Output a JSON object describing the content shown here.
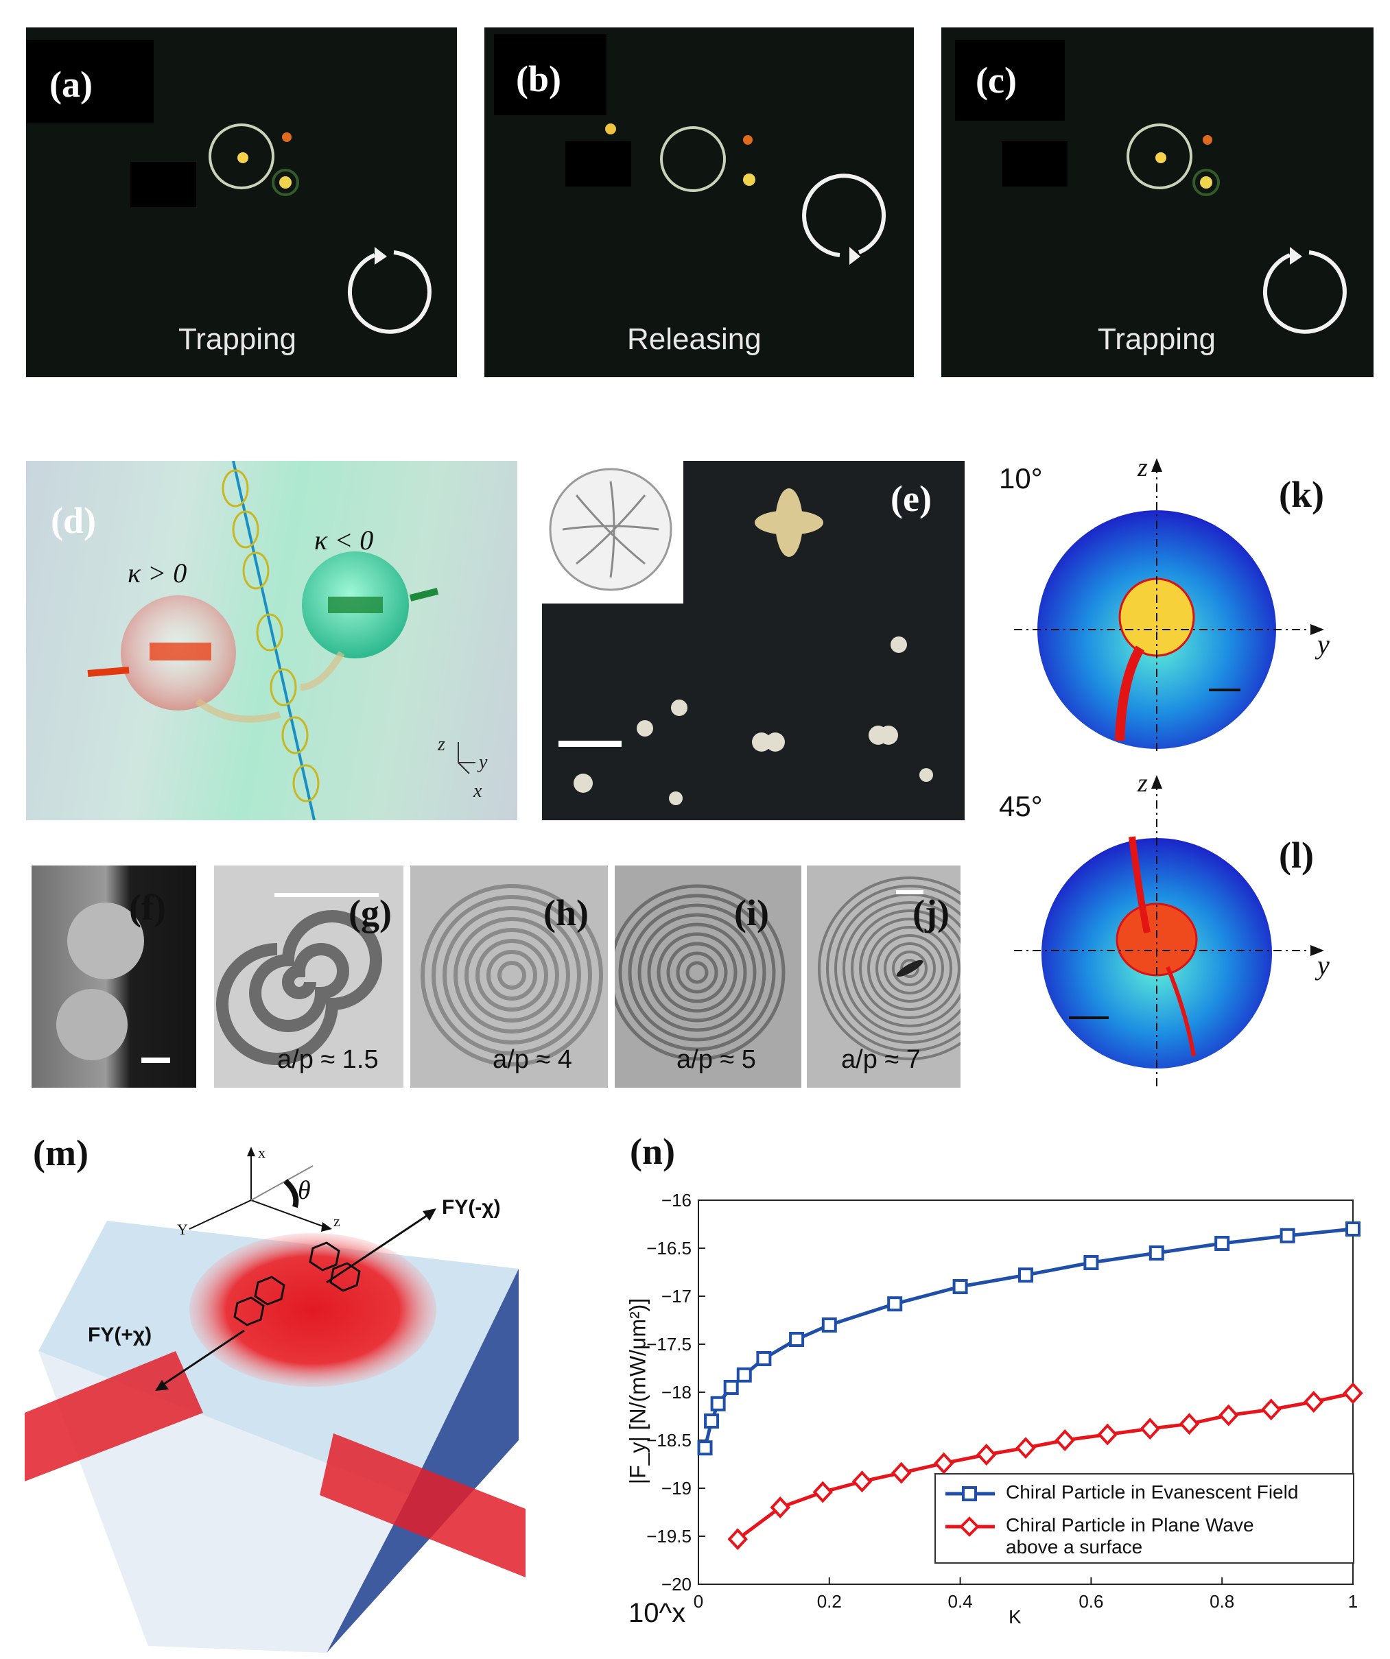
{
  "panels": {
    "a": {
      "label": "(a)",
      "caption": "Trapping"
    },
    "b": {
      "label": "(b)",
      "caption": "Releasing"
    },
    "c": {
      "label": "(c)",
      "caption": "Trapping"
    },
    "d": {
      "label": "(d)",
      "kappa_pos": "κ > 0",
      "kappa_neg": "κ < 0",
      "axis_z": "z",
      "axis_y": "y",
      "axis_x": "x"
    },
    "e": {
      "label": "(e)"
    },
    "f": {
      "label": "(f)"
    },
    "g": {
      "label": "(g)",
      "caption": "a/p ≈ 1.5"
    },
    "h": {
      "label": "(h)",
      "caption": "a/p ≈ 4"
    },
    "i": {
      "label": "(i)",
      "caption": "a/p ≈ 5"
    },
    "j": {
      "label": "(j)",
      "caption": "a/p ≈ 7"
    },
    "k": {
      "label": "(k)",
      "angle": "10°",
      "axis_z": "z",
      "axis_y": "y"
    },
    "l": {
      "label": "(l)",
      "angle": "45°",
      "axis_z": "z",
      "axis_y": "y"
    },
    "m": {
      "label": "(m)",
      "axis_x": "x",
      "axis_y": "Y",
      "axis_z": "z",
      "theta": "θ",
      "force_neg": "FY(-χ)",
      "force_pos": "FY(+χ)"
    },
    "n": {
      "label": "(n)"
    }
  },
  "colors": {
    "blue_series": "#1f4fa8",
    "red_series": "#e8141c"
  },
  "chart_data": {
    "type": "line",
    "ylabel": "|F_y| [N/(mW/μm²)]",
    "xlabel": "K",
    "y_multiplier": "10^x",
    "xlim": [
      0,
      1
    ],
    "ylim": [
      -20,
      -16
    ],
    "x_ticks": [
      "0",
      "0.2",
      "0.4",
      "0.6",
      "0.8",
      "1"
    ],
    "y_ticks": [
      "-16",
      "-16.5",
      "-17",
      "-17.5",
      "-18",
      "-18.5",
      "-19",
      "-19.5",
      "-20"
    ],
    "legend_position": "bottom-right",
    "grid": false,
    "series": [
      {
        "name": "Chiral Particle in Evanescent Field",
        "marker": "square",
        "x": [
          0.01,
          0.02,
          0.03,
          0.05,
          0.07,
          0.1,
          0.15,
          0.2,
          0.3,
          0.4,
          0.5,
          0.6,
          0.7,
          0.8,
          0.9,
          1.0
        ],
        "y": [
          -18.58,
          -18.3,
          -18.12,
          -17.95,
          -17.82,
          -17.65,
          -17.45,
          -17.3,
          -17.08,
          -16.9,
          -16.78,
          -16.65,
          -16.55,
          -16.45,
          -16.37,
          -16.3
        ]
      },
      {
        "name": "Chiral Particle in Plane Wave above a surface",
        "marker": "diamond",
        "x": [
          0.06,
          0.125,
          0.19,
          0.25,
          0.31,
          0.375,
          0.44,
          0.5,
          0.56,
          0.625,
          0.69,
          0.75,
          0.81,
          0.875,
          0.94,
          1.0
        ],
        "y": [
          -19.53,
          -19.2,
          -19.04,
          -18.93,
          -18.84,
          -18.74,
          -18.65,
          -18.58,
          -18.5,
          -18.44,
          -18.38,
          -18.33,
          -18.24,
          -18.18,
          -18.1,
          -18.01
        ]
      }
    ]
  }
}
